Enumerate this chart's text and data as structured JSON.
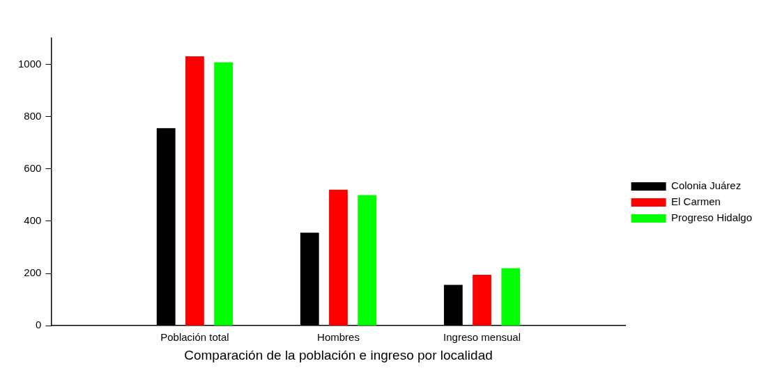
{
  "chart_data": {
    "type": "bar",
    "xlabel": "Comparación de la población e ingreso por localidad",
    "categories": [
      "Población total",
      "Hombres",
      "Ingreso mensual"
    ],
    "series": [
      {
        "name": "Colonia Juárez",
        "color": "#000000",
        "values": [
          756,
          356,
          156
        ]
      },
      {
        "name": "El Carmen",
        "color": "#ff0000",
        "values": [
          1031,
          520,
          195
        ]
      },
      {
        "name": "Progreso Hidalgo",
        "color": "#00ff00",
        "values": [
          1008,
          500,
          220
        ]
      }
    ],
    "ylim": [
      0,
      1100
    ],
    "yticks": [
      0,
      200,
      400,
      600,
      800,
      1000
    ],
    "grid": false,
    "legend": "right"
  }
}
